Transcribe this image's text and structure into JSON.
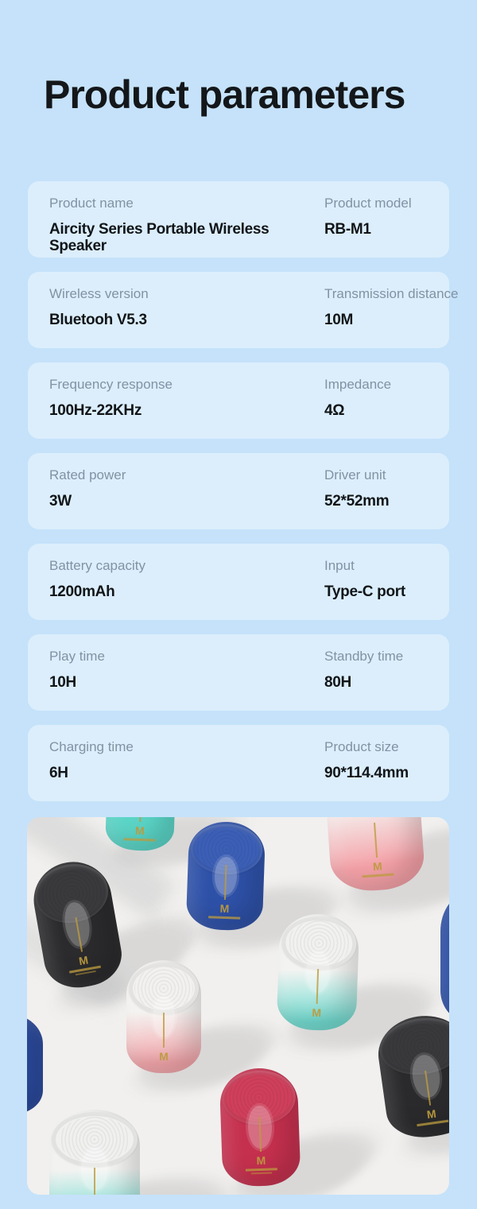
{
  "page": {
    "title": "Product parameters",
    "background": "#c5e2fa",
    "card_background": "#dceefc"
  },
  "specs": [
    {
      "fields": [
        {
          "label": "Product name",
          "value": "Aircity Series Portable Wireless Speaker"
        },
        {
          "label": "Product model",
          "value": "RB-M1"
        }
      ]
    },
    {
      "fields": [
        {
          "label": "Wireless version",
          "value": "Bluetooh V5.3"
        },
        {
          "label": "Transmission distance",
          "value": "10M"
        }
      ]
    },
    {
      "fields": [
        {
          "label": "Frequency response",
          "value": "100Hz-22KHz"
        },
        {
          "label": "Impedance",
          "value": "4Ω"
        }
      ]
    },
    {
      "fields": [
        {
          "label": "Rated power",
          "value": "3W"
        },
        {
          "label": "Driver unit",
          "value": "52*52mm"
        }
      ]
    },
    {
      "fields": [
        {
          "label": "Battery capacity",
          "value": "1200mAh"
        },
        {
          "label": "Input",
          "value": "Type-C port"
        }
      ]
    },
    {
      "fields": [
        {
          "label": "Play time",
          "value": "10H"
        },
        {
          "label": "Standby time",
          "value": "80H"
        }
      ]
    },
    {
      "fields": [
        {
          "label": "Charging time",
          "value": "6H"
        },
        {
          "label": "Product size",
          "value": "90*114.4mm"
        }
      ]
    }
  ],
  "photo": {
    "surface": "#f1f0ee",
    "brand_mark": "M",
    "brand_color": "#bd9b3e",
    "speakers": [
      {
        "variant": "mint",
        "body": "#5bd5c7",
        "top": "#6ad9cc"
      },
      {
        "variant": "black",
        "body": "#2b2b2d",
        "top": "#3a3a3d"
      },
      {
        "variant": "blue",
        "body": "#2e51a8",
        "top": "#3c5fb6"
      },
      {
        "variant": "white-pink",
        "body": "linear-gradient(175deg,#f5f4f2 35%,#f4a1a7 80%)",
        "top": "#f5f4f2"
      },
      {
        "variant": "white-pink",
        "body": "linear-gradient(178deg,#f4f3f1 45%,#f3a6ab 90%)",
        "top": "#f2f1ef"
      },
      {
        "variant": "white-mint",
        "body": "linear-gradient(178deg,#f3f4f2 48%,#72dbd0 92%)",
        "top": "#f1f2f0"
      },
      {
        "variant": "red",
        "body": "#c5304e",
        "top": "#cf3f5b"
      },
      {
        "variant": "black",
        "body": "#2a2a2c",
        "top": "#39393c"
      },
      {
        "variant": "blue",
        "body": "#2b4a9d",
        "top": "#2b4a9d"
      },
      {
        "variant": "white-mint",
        "body": "linear-gradient(178deg,#f2f3f1 50%,#6fdacf 94%)",
        "top": "#f0f1ef"
      },
      {
        "variant": "blue",
        "body": "#2c4da1",
        "top": "#2c4da1"
      }
    ]
  }
}
